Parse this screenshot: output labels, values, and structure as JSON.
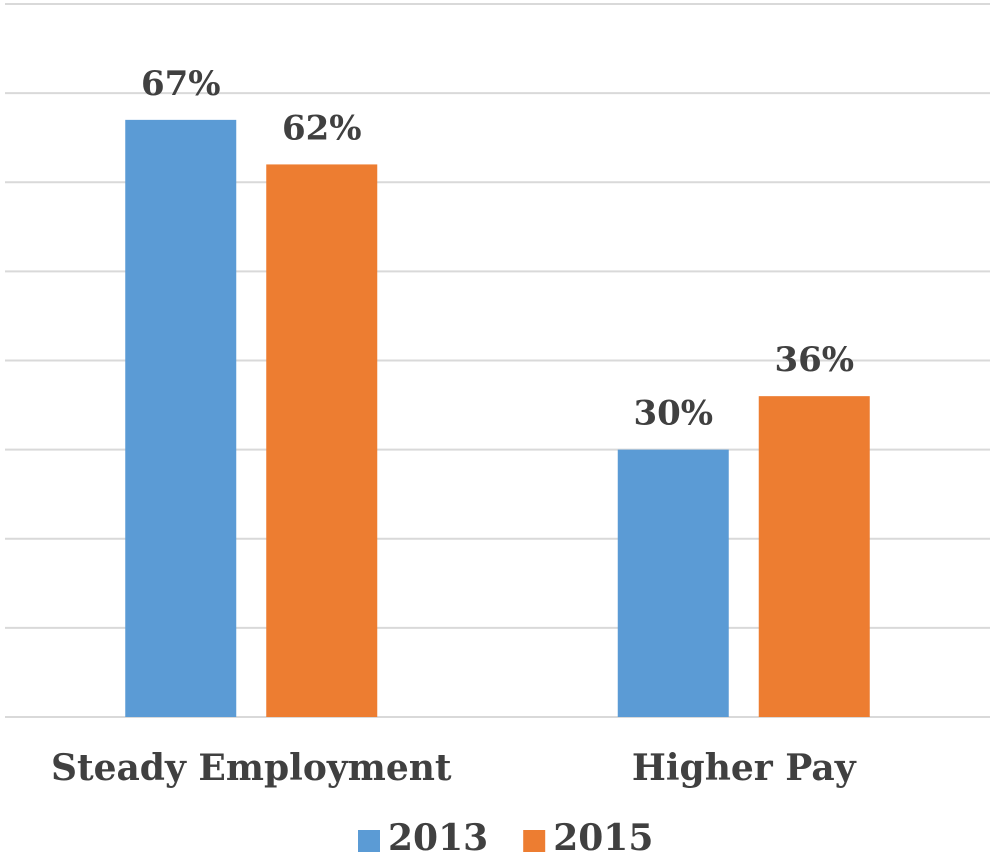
{
  "chart_data": {
    "type": "bar",
    "categories": [
      "Steady Employment",
      "Higher Pay"
    ],
    "series": [
      {
        "name": "2013",
        "color": "#5b9bd5",
        "values": [
          67,
          30
        ],
        "value_labels": [
          "67%",
          "30%"
        ]
      },
      {
        "name": "2015",
        "color": "#ed7d31",
        "values": [
          62,
          36
        ],
        "value_labels": [
          "62%",
          "36%"
        ]
      }
    ],
    "ylim": [
      0,
      80
    ],
    "yticks": [
      0,
      10,
      20,
      30,
      40,
      50,
      60,
      70,
      80
    ],
    "grid": true,
    "legend": "bottom"
  }
}
